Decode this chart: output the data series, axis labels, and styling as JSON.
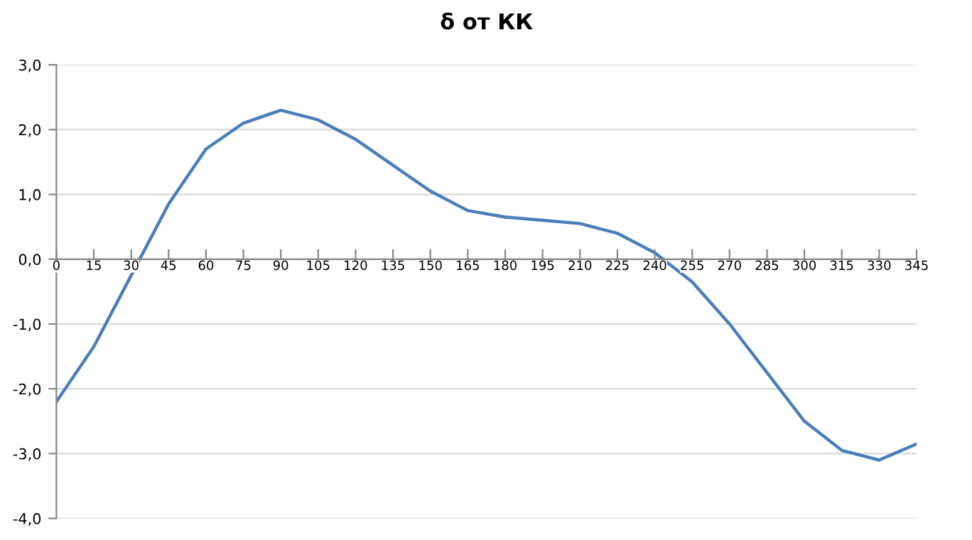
{
  "chart_data": {
    "type": "line",
    "title": "δ от КК",
    "x": [
      0,
      15,
      30,
      45,
      60,
      75,
      90,
      105,
      120,
      135,
      150,
      165,
      180,
      195,
      210,
      225,
      240,
      255,
      270,
      285,
      300,
      315,
      330,
      345
    ],
    "series": [
      {
        "color": "#4a7ebb",
        "values": [
          -2.2,
          -1.35,
          -0.25,
          0.85,
          1.7,
          2.1,
          2.3,
          2.15,
          1.85,
          1.45,
          1.05,
          0.75,
          0.65,
          0.6,
          0.55,
          0.4,
          0.1,
          -0.35,
          -1.0,
          -1.75,
          -2.5,
          -2.95,
          -3.1,
          -2.85
        ]
      }
    ],
    "xlim": [
      0,
      345
    ],
    "xticks": [
      0,
      15,
      30,
      45,
      60,
      75,
      90,
      105,
      120,
      135,
      150,
      165,
      180,
      195,
      210,
      225,
      240,
      255,
      270,
      285,
      300,
      315,
      330,
      345
    ],
    "ylim": [
      -4,
      3
    ],
    "yticks": [
      {
        "value": -4,
        "label": "-4,0"
      },
      {
        "value": -3,
        "label": "-3,0"
      },
      {
        "value": -2,
        "label": "-2,0"
      },
      {
        "value": -1,
        "label": "-1,0"
      },
      {
        "value": 0,
        "label": "0,0"
      },
      {
        "value": 1,
        "label": "1,0"
      },
      {
        "value": 2,
        "label": "2,0"
      },
      {
        "value": 3,
        "label": "3,0"
      }
    ],
    "grid": "y",
    "marker": "none",
    "line_style": "solid",
    "legend": false
  }
}
